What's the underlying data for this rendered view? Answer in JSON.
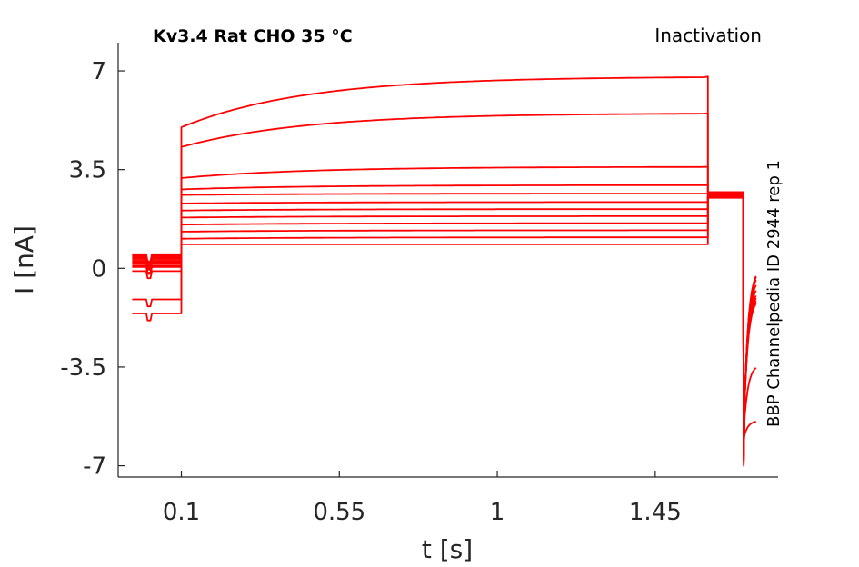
{
  "chart_data": {
    "type": "line",
    "title": "Kv3.4  Rat  CHO  35 °C",
    "protocol_label": "Inactivation",
    "side_label": "BBP Channelpedia ID 2944 rep 1",
    "xlabel": "t [s]",
    "ylabel": "I [nA]",
    "xlim": [
      -0.08,
      1.8
    ],
    "ylim": [
      -7.4,
      8.0
    ],
    "xticks": [
      0.1,
      0.55,
      1,
      1.45
    ],
    "xtick_labels": [
      "0.1",
      "0.55",
      "1",
      "1.45"
    ],
    "yticks": [
      -7,
      -3.5,
      0,
      3.5,
      7
    ],
    "ytick_labels": [
      "-7",
      "-3.5",
      "0",
      "3.5",
      "7"
    ],
    "grid": false,
    "line_color": "#ff0000",
    "series": [
      {
        "pre": 0.5,
        "on": 5.0,
        "ss": 6.8,
        "tail": 2.7,
        "post": 0.05
      },
      {
        "pre": 0.45,
        "on": 4.3,
        "ss": 5.5,
        "tail": 2.7,
        "post": 0.0
      },
      {
        "pre": 0.4,
        "on": 3.2,
        "ss": 3.6,
        "tail": 2.7,
        "post": -0.1
      },
      {
        "pre": 0.35,
        "on": 2.8,
        "ss": 2.95,
        "tail": 2.7,
        "post": -0.3
      },
      {
        "pre": 0.3,
        "on": 2.6,
        "ss": 2.65,
        "tail": 2.65,
        "post": -0.5
      },
      {
        "pre": 0.25,
        "on": 2.3,
        "ss": 2.35,
        "tail": 2.65,
        "post": -0.7
      },
      {
        "pre": 0.2,
        "on": 2.05,
        "ss": 2.1,
        "tail": 2.6,
        "post": -0.8
      },
      {
        "pre": 0.1,
        "on": 1.8,
        "ss": 1.85,
        "tail": 2.6,
        "post": -0.9
      },
      {
        "pre": 0.05,
        "on": 1.55,
        "ss": 1.6,
        "tail": 2.6,
        "post": -1.0
      },
      {
        "pre": -0.1,
        "on": 1.3,
        "ss": 1.35,
        "tail": 2.55,
        "post": -0.8
      },
      {
        "pre": -1.1,
        "on": 1.05,
        "ss": 1.1,
        "tail": 2.55,
        "post": -3.4
      },
      {
        "pre": -1.6,
        "on": 0.85,
        "ss": 0.85,
        "tail": 2.5,
        "post": -5.4
      }
    ],
    "tail_min": -7.0
  }
}
